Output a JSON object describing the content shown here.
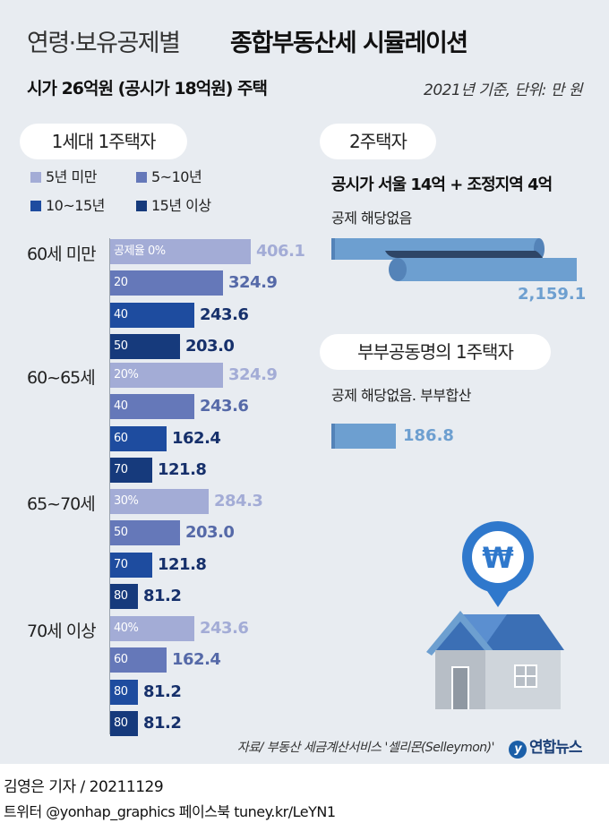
{
  "header": {
    "title_light": "연령·보유공제별",
    "title_bold": "종합부동산세 시뮬레이션",
    "subtitle": "시가 26억원 (공시가 18억원) 주택",
    "basis": "2021년 기준, 단위: 만 원"
  },
  "sections": {
    "one_house": "1세대 1주택자",
    "two_house": "2주택자",
    "couple": "부부공동명의 1주택자"
  },
  "colors": {
    "lt5": "#a3acd6",
    "y5to10": "#6578b9",
    "y10to15": "#1e4c9f",
    "y15plus": "#163a7c",
    "value_lt5": "#a3acd6",
    "value_5to10": "#5569a8",
    "value_dark": "#16306b",
    "two_house_bar": "#6d9fd0",
    "two_house_bar_dark": "#3d5a80",
    "couple_bar": "#6d9fd0"
  },
  "chart_data": [
    {
      "type": "bar",
      "orientation": "horizontal",
      "unit": "만 원",
      "legend": [
        "5년 미만",
        "5~10년",
        "10~15년",
        "15년 이상"
      ],
      "rate_prefix": "공제율",
      "groups": [
        {
          "label": "60세 미만",
          "bars": [
            {
              "rate": "0%",
              "value": 406.1,
              "value_label": "406.1",
              "holding": 0
            },
            {
              "rate": "20",
              "value": 324.9,
              "value_label": "324.9",
              "holding": 1
            },
            {
              "rate": "40",
              "value": 243.6,
              "value_label": "243.6",
              "holding": 2
            },
            {
              "rate": "50",
              "value": 203.0,
              "value_label": "203.0",
              "holding": 3
            }
          ]
        },
        {
          "label": "60~65세",
          "bars": [
            {
              "rate": "20%",
              "value": 324.9,
              "value_label": "324.9",
              "holding": 0
            },
            {
              "rate": "40",
              "value": 243.6,
              "value_label": "243.6",
              "holding": 1
            },
            {
              "rate": "60",
              "value": 162.4,
              "value_label": "162.4",
              "holding": 2
            },
            {
              "rate": "70",
              "value": 121.8,
              "value_label": "121.8",
              "holding": 3
            }
          ]
        },
        {
          "label": "65~70세",
          "bars": [
            {
              "rate": "30%",
              "value": 284.3,
              "value_label": "284.3",
              "holding": 0
            },
            {
              "rate": "50",
              "value": 203.0,
              "value_label": "203.0",
              "holding": 1
            },
            {
              "rate": "70",
              "value": 121.8,
              "value_label": "121.8",
              "holding": 2
            },
            {
              "rate": "80",
              "value": 81.2,
              "value_label": "81.2",
              "holding": 3
            }
          ]
        },
        {
          "label": "70세 이상",
          "bars": [
            {
              "rate": "40%",
              "value": 243.6,
              "value_label": "243.6",
              "holding": 0
            },
            {
              "rate": "60",
              "value": 162.4,
              "value_label": "162.4",
              "holding": 1
            },
            {
              "rate": "80",
              "value": 81.2,
              "value_label": "81.2",
              "holding": 2
            },
            {
              "rate": "80",
              "value": 81.2,
              "value_label": "81.2",
              "holding": 3
            }
          ]
        }
      ]
    },
    {
      "type": "bar",
      "orientation": "horizontal",
      "unit": "만 원",
      "series": [
        {
          "value": 2159.1,
          "value_label": "2,159.1"
        }
      ]
    },
    {
      "type": "bar",
      "orientation": "horizontal",
      "unit": "만 원",
      "series": [
        {
          "value": 186.8,
          "value_label": "186.8"
        }
      ]
    }
  ],
  "two_house": {
    "condition": "공시가 서울 14억 + 조정지역 4억",
    "note": "공제 해당없음"
  },
  "couple": {
    "note": "공제 해당없음. 부부합산"
  },
  "illustration": {
    "icon": "house-with-won-pin-icon",
    "symbol": "₩"
  },
  "footer": {
    "source": "자료/ 부동산 세금계산서비스 '셀리몬(Selleymon)'",
    "logo": "연합뉴스",
    "byline": "김영은 기자 / 20211129",
    "social": "트위터 @yonhap_graphics  페이스북 tuney.kr/LeYN1"
  }
}
